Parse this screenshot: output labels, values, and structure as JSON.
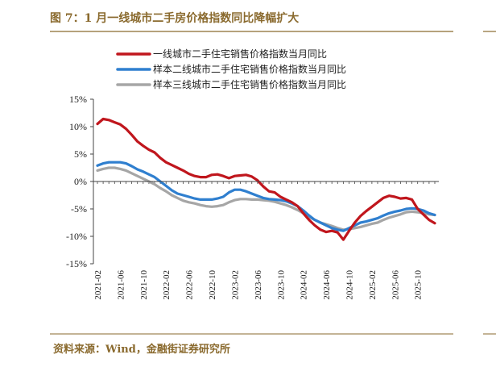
{
  "title": "图 7：1 月一线城市二手房价格指数同比降幅扩大",
  "source": "资料来源：Wind，金融街证券研究所",
  "chart_data": {
    "type": "line",
    "ylim": [
      -15,
      15
    ],
    "yticks": [
      15,
      10,
      5,
      0,
      -5,
      -10,
      -15
    ],
    "ytick_labels": [
      "15%",
      "10%",
      "5%",
      "0%",
      "-5%",
      "-10%",
      "-15%"
    ],
    "x_start": "2021-02",
    "x_end": "2026-01",
    "xticks": [
      "2021-02",
      "2021-06",
      "2021-10",
      "2022-02",
      "2022-06",
      "2022-10",
      "2023-02",
      "2023-06",
      "2023-10",
      "2024-02",
      "2024-06",
      "2024-10",
      "2025-02",
      "2025-06",
      "2025-10"
    ],
    "legend_position": "top",
    "series": [
      {
        "name": "一线城市二手住宅销售价格指数当月同比",
        "color": "#c0161d",
        "values": [
          10.5,
          11.4,
          11.2,
          10.8,
          10.4,
          9.6,
          8.5,
          7.3,
          6.5,
          5.8,
          5.3,
          4.3,
          3.5,
          3.0,
          2.5,
          2.0,
          1.4,
          1.0,
          0.8,
          0.8,
          1.2,
          1.3,
          1.0,
          0.6,
          1.0,
          1.1,
          1.2,
          0.9,
          0.2,
          -0.9,
          -1.8,
          -2.0,
          -2.8,
          -3.3,
          -3.8,
          -4.5,
          -5.8,
          -7.0,
          -8.0,
          -8.8,
          -9.2,
          -9.0,
          -9.3,
          -10.6,
          -9.0,
          -7.5,
          -6.3,
          -5.4,
          -4.6,
          -3.8,
          -3.0,
          -2.6,
          -2.8,
          -3.1,
          -3.0,
          -3.3,
          -5.0,
          -6.0,
          -7.0,
          -7.6
        ]
      },
      {
        "name": "样本二线城市二手住宅销售价格指数当月同比",
        "color": "#2f7fcf",
        "values": [
          2.9,
          3.3,
          3.5,
          3.5,
          3.5,
          3.3,
          2.8,
          2.2,
          1.8,
          1.3,
          0.8,
          0.0,
          -0.8,
          -1.6,
          -2.2,
          -2.5,
          -2.8,
          -3.1,
          -3.3,
          -3.3,
          -3.3,
          -3.1,
          -2.8,
          -2.0,
          -1.5,
          -1.5,
          -1.8,
          -2.2,
          -2.6,
          -3.0,
          -3.2,
          -3.3,
          -3.4,
          -3.6,
          -4.0,
          -4.5,
          -5.3,
          -6.2,
          -7.0,
          -7.5,
          -8.0,
          -8.5,
          -8.8,
          -9.0,
          -8.5,
          -8.0,
          -7.5,
          -7.3,
          -7.0,
          -6.7,
          -6.2,
          -5.8,
          -5.5,
          -5.3,
          -5.0,
          -4.9,
          -5.0,
          -5.3,
          -5.8,
          -6.1
        ]
      },
      {
        "name": "样本三线城市二手住宅销售价格指数当月同比",
        "color": "#a6a6a6",
        "values": [
          2.0,
          2.3,
          2.5,
          2.5,
          2.3,
          2.0,
          1.5,
          1.0,
          0.5,
          0.0,
          -0.5,
          -1.2,
          -1.8,
          -2.5,
          -3.0,
          -3.5,
          -3.8,
          -4.0,
          -4.3,
          -4.5,
          -4.6,
          -4.5,
          -4.3,
          -3.8,
          -3.4,
          -3.2,
          -3.2,
          -3.3,
          -3.3,
          -3.4,
          -3.5,
          -3.7,
          -4.0,
          -4.3,
          -4.7,
          -5.2,
          -5.8,
          -6.5,
          -7.0,
          -7.5,
          -7.8,
          -8.1,
          -8.5,
          -8.8,
          -8.7,
          -8.5,
          -8.3,
          -8.0,
          -7.7,
          -7.5,
          -7.0,
          -6.6,
          -6.3,
          -6.0,
          -5.6,
          -5.5,
          -5.6,
          -5.8,
          -6.0,
          -6.1
        ]
      }
    ]
  }
}
